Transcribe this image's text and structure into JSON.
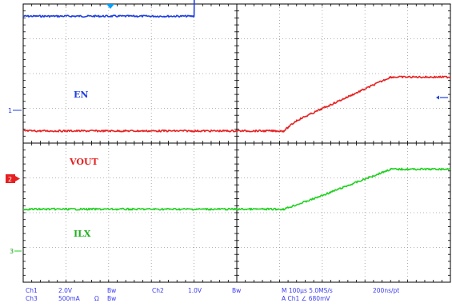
{
  "chart_data": {
    "type": "line",
    "title": "",
    "xlabel": "",
    "ylabel": "",
    "time_per_div_us": 100,
    "x_unit": "us",
    "xlim": [
      0,
      1000
    ],
    "x_divisions": 10,
    "y_divisions": 8,
    "grid": true,
    "series": [
      {
        "name": "EN",
        "channel": "1",
        "color": "#1f3fe0",
        "x": [
          0,
          400,
          402,
          1000
        ],
        "y_div": [
          3.65,
          3.65,
          6.65,
          6.65
        ]
      },
      {
        "name": "VOUT",
        "channel": "2",
        "color": "#e62020",
        "x": [
          0,
          610,
          640,
          860,
          1000
        ],
        "y_div": [
          0.35,
          0.35,
          0.65,
          1.9,
          1.9
        ]
      },
      {
        "name": "ILX",
        "channel": "3",
        "color": "#20d020",
        "x": [
          0,
          610,
          680,
          860,
          1000
        ],
        "y_div": [
          -1.9,
          -1.9,
          -1.6,
          -0.75,
          -0.75
        ]
      }
    ]
  },
  "markers": {
    "ch1": "1",
    "ch2": "2",
    "ch3": "3"
  },
  "readout": {
    "ch1_label": "Ch1",
    "ch1_scale": "2.0V",
    "ch1_bw": "Bw",
    "ch2_label": "Ch2",
    "ch2_scale": "1.0V",
    "ch2_bw": "Bw",
    "ch3_label": "Ch3",
    "ch3_scale": "500mA",
    "ch3_unit": "Ω",
    "ch3_bw": "Bw",
    "timebase": "M 100μs 5.0MS/s",
    "sample": "200ns/pt",
    "trigger": "A  Ch1  ∠  680mV"
  },
  "colors": {
    "grid_major": "#000000",
    "grid_minor": "#9a9a9a",
    "readout_text": "#3a3af0",
    "trigger_marker": "#00a0ff"
  }
}
